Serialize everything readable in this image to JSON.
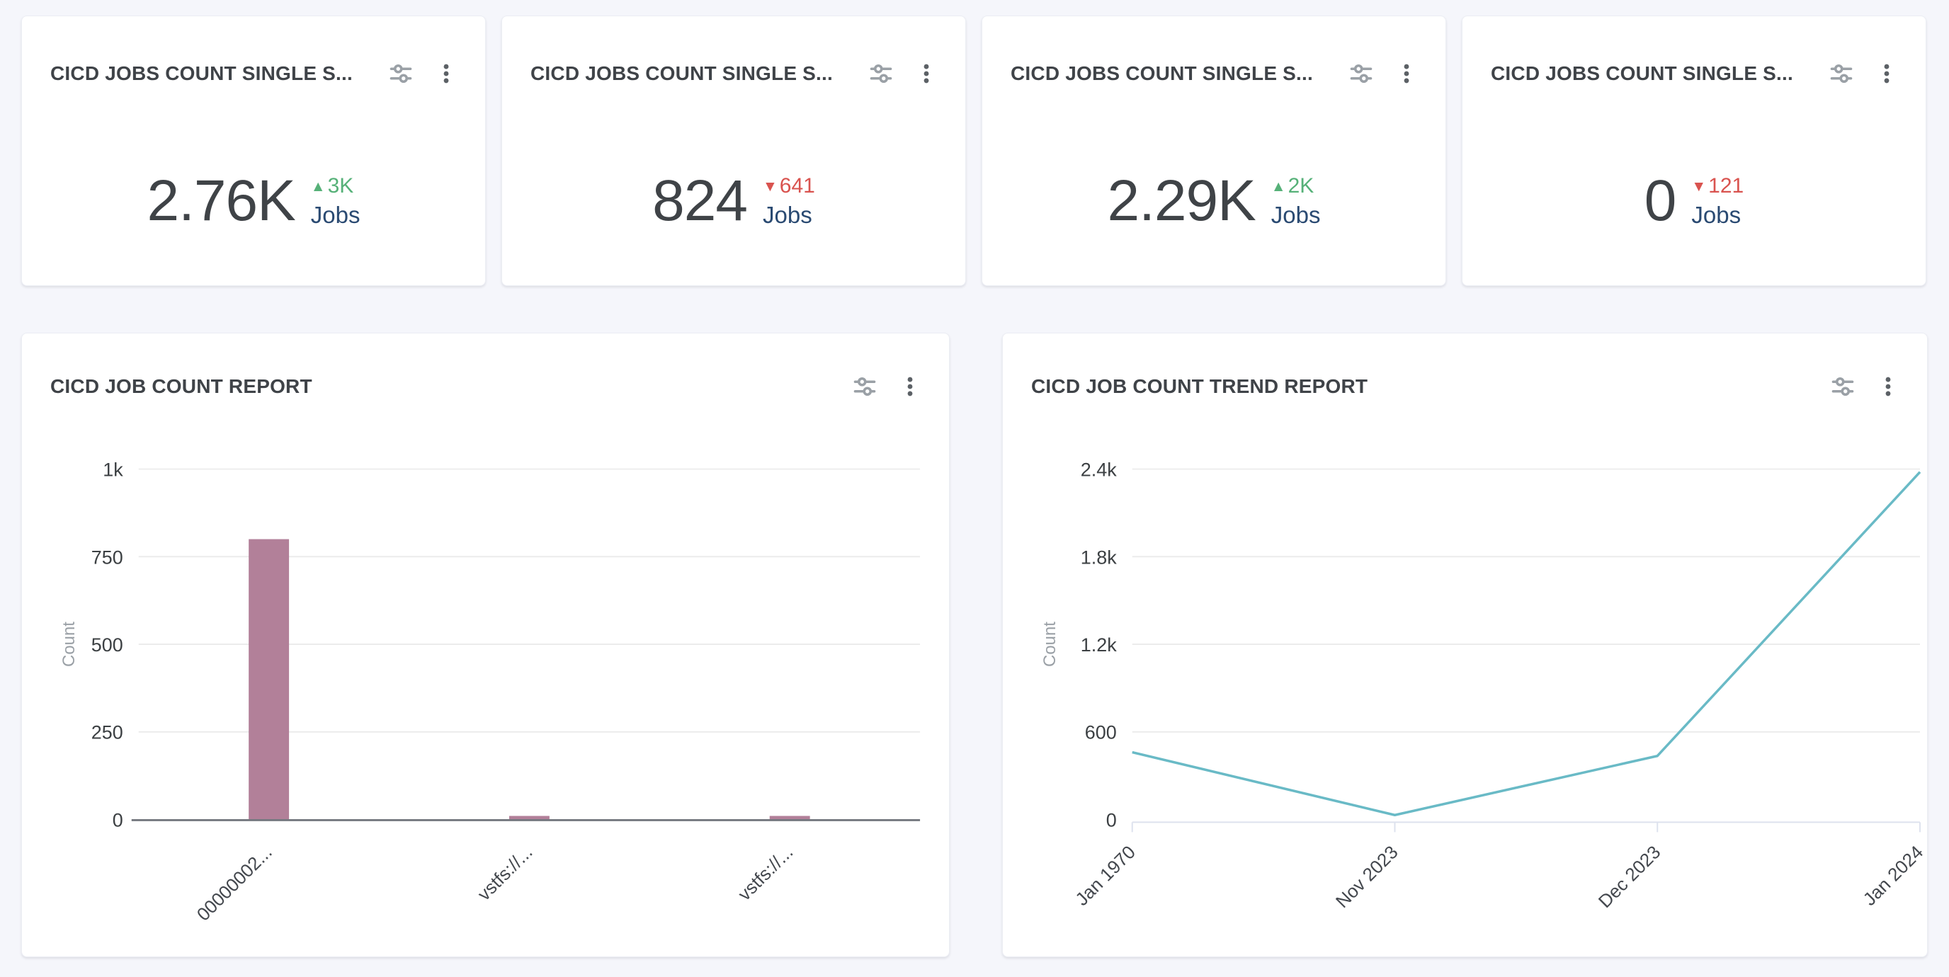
{
  "colors": {
    "page_background": "#f5f6fb",
    "card_background": "#ffffff",
    "delta_up": "#56b178",
    "delta_down": "#d9534f",
    "unit_text": "#2a4a72",
    "bar": "#b28099",
    "trend_line": "#69bac6"
  },
  "stat_cards": [
    {
      "title": "CICD JOBS COUNT SINGLE S...",
      "value": "2.76K",
      "delta": "3K",
      "delta_direction": "up",
      "unit": "Jobs"
    },
    {
      "title": "CICD JOBS COUNT SINGLE S...",
      "value": "824",
      "delta": "641",
      "delta_direction": "down",
      "unit": "Jobs"
    },
    {
      "title": "CICD JOBS COUNT SINGLE S...",
      "value": "2.29K",
      "delta": "2K",
      "delta_direction": "up",
      "unit": "Jobs"
    },
    {
      "title": "CICD JOBS COUNT SINGLE S...",
      "value": "0",
      "delta": "121",
      "delta_direction": "down",
      "unit": "Jobs"
    }
  ],
  "chart_data": [
    {
      "type": "bar",
      "title": "CICD JOB COUNT REPORT",
      "categories": [
        "00000002...",
        "vstfs://...",
        "vstfs://..."
      ],
      "values": [
        800,
        10,
        10
      ],
      "ylabel": "Count",
      "xlabel": "",
      "ymax": 1000,
      "yticks": [
        {
          "v": 0,
          "label": "0"
        },
        {
          "v": 250,
          "label": "250"
        },
        {
          "v": 500,
          "label": "500"
        },
        {
          "v": 750,
          "label": "750"
        },
        {
          "v": 1000,
          "label": "1k"
        }
      ],
      "grid": "horizontal",
      "legend": "none",
      "color": "#b28099"
    },
    {
      "type": "line",
      "title": "CICD JOB COUNT TREND REPORT",
      "x": [
        "Jan 1970",
        "Nov 2023",
        "Dec 2023",
        "Jan 2024"
      ],
      "values": [
        460,
        30,
        435,
        2380
      ],
      "ylabel": "Count",
      "xlabel": "",
      "ymax": 2400,
      "yticks": [
        {
          "v": 0,
          "label": "0"
        },
        {
          "v": 600,
          "label": "600"
        },
        {
          "v": 1200,
          "label": "1.2k"
        },
        {
          "v": 1800,
          "label": "1.8k"
        },
        {
          "v": 2400,
          "label": "2.4k"
        }
      ],
      "grid": "horizontal",
      "legend": "none",
      "color": "#69bac6"
    }
  ]
}
